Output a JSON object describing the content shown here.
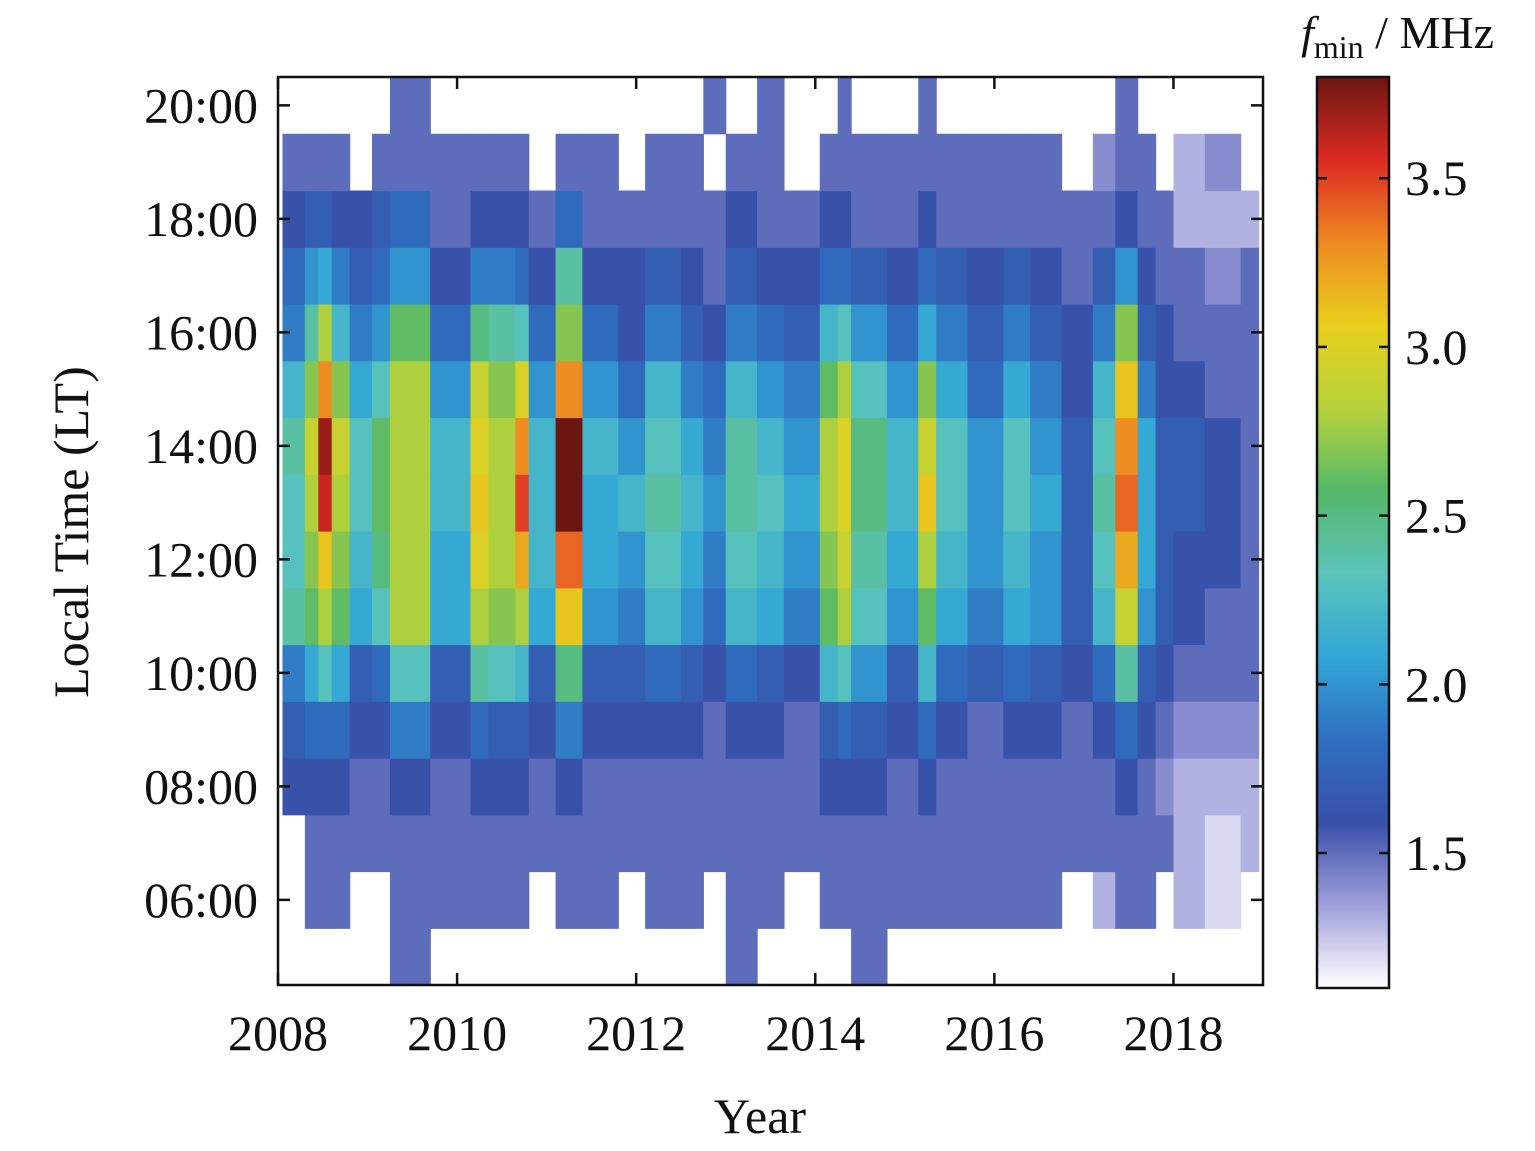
{
  "chart_data": {
    "type": "heatmap",
    "xlabel": "Year",
    "ylabel": "Local Time (LT)",
    "colorbar": {
      "label_main": "f",
      "label_sub": "min",
      "label_unit": " / MHz",
      "range": [
        1.1,
        3.8
      ],
      "ticks": [
        1.5,
        2.0,
        2.5,
        3.0,
        3.5
      ],
      "tick_labels": [
        "1.5",
        "2.0",
        "2.5",
        "3.0",
        "3.5"
      ],
      "colors": [
        "#ffffff",
        "#9f9fdb",
        "#3850a8",
        "#2f6fbf",
        "#32a6d6",
        "#5cc4bb",
        "#55b86a",
        "#b6d23a",
        "#e8cf1e",
        "#ee8a22",
        "#dc2a24",
        "#6b1612"
      ]
    },
    "xlim": [
      2008,
      2019
    ],
    "xticks": [
      2008,
      2010,
      2012,
      2014,
      2016,
      2018
    ],
    "xtick_labels": [
      "2008",
      "2010",
      "2012",
      "2014",
      "2016",
      "2018"
    ],
    "ylim": [
      4.5,
      20.5
    ],
    "yticks": [
      6,
      8,
      10,
      12,
      14,
      16,
      18,
      20
    ],
    "ytick_labels": [
      "06:00",
      "08:00",
      "10:00",
      "12:00",
      "14:00",
      "16:00",
      "18:00",
      "20:00"
    ],
    "hours": [
      5,
      6,
      7,
      8,
      9,
      10,
      11,
      12,
      13,
      14,
      15,
      16,
      17,
      18,
      19,
      20
    ],
    "columns": [
      {
        "x0": 2008.05,
        "x1": 2008.3,
        "v": [
          null,
          null,
          null,
          1.6,
          1.7,
          1.9,
          2.4,
          2.3,
          2.3,
          2.4,
          2.2,
          1.9,
          1.8,
          1.6,
          1.5,
          null
        ]
      },
      {
        "x0": 2008.3,
        "x1": 2008.45,
        "v": [
          null,
          1.5,
          1.5,
          1.6,
          1.8,
          2.1,
          2.6,
          2.7,
          2.8,
          2.9,
          2.7,
          2.4,
          2.0,
          1.7,
          1.5,
          null
        ]
      },
      {
        "x0": 2008.45,
        "x1": 2008.6,
        "v": [
          null,
          1.5,
          1.5,
          1.6,
          1.8,
          2.3,
          2.8,
          3.1,
          3.6,
          3.7,
          3.3,
          2.8,
          2.1,
          1.7,
          1.5,
          null
        ]
      },
      {
        "x0": 2008.6,
        "x1": 2008.8,
        "v": [
          null,
          1.5,
          1.5,
          1.6,
          1.8,
          2.1,
          2.6,
          2.7,
          2.8,
          2.9,
          2.7,
          2.2,
          1.9,
          1.6,
          1.5,
          null
        ]
      },
      {
        "x0": 2008.8,
        "x1": 2009.05,
        "v": [
          null,
          null,
          1.5,
          1.5,
          1.6,
          1.7,
          2.1,
          2.2,
          2.3,
          2.3,
          2.1,
          1.9,
          1.7,
          1.6,
          null,
          null
        ]
      },
      {
        "x0": 2009.05,
        "x1": 2009.25,
        "v": [
          null,
          null,
          1.5,
          1.5,
          1.6,
          1.8,
          2.3,
          2.5,
          2.6,
          2.6,
          2.3,
          2.0,
          1.8,
          1.7,
          1.5,
          null
        ]
      },
      {
        "x0": 2009.25,
        "x1": 2009.7,
        "v": [
          1.5,
          1.5,
          1.5,
          1.6,
          1.9,
          2.3,
          2.8,
          2.8,
          2.8,
          2.8,
          2.8,
          2.6,
          2.0,
          1.8,
          1.5,
          1.5
        ]
      },
      {
        "x0": 2009.7,
        "x1": 2010.15,
        "v": [
          null,
          1.5,
          1.5,
          1.5,
          1.6,
          1.7,
          2.1,
          2.1,
          2.2,
          2.2,
          2.0,
          1.8,
          1.6,
          1.5,
          1.5,
          null
        ]
      },
      {
        "x0": 2010.15,
        "x1": 2010.35,
        "v": [
          null,
          1.5,
          1.5,
          1.6,
          1.8,
          2.4,
          2.8,
          3.0,
          3.1,
          3.0,
          2.9,
          2.5,
          1.9,
          1.6,
          1.5,
          null
        ]
      },
      {
        "x0": 2010.35,
        "x1": 2010.65,
        "v": [
          null,
          1.5,
          1.5,
          1.6,
          1.7,
          2.3,
          2.7,
          2.8,
          2.8,
          2.8,
          2.7,
          2.4,
          1.9,
          1.6,
          1.5,
          null
        ]
      },
      {
        "x0": 2010.65,
        "x1": 2010.8,
        "v": [
          null,
          1.5,
          1.5,
          1.6,
          1.7,
          2.2,
          2.8,
          3.2,
          3.5,
          3.3,
          3.0,
          2.3,
          1.8,
          1.6,
          1.5,
          null
        ]
      },
      {
        "x0": 2010.8,
        "x1": 2011.1,
        "v": [
          null,
          null,
          1.5,
          1.5,
          1.6,
          1.7,
          2.1,
          2.2,
          2.2,
          2.2,
          2.0,
          1.8,
          1.6,
          1.5,
          null,
          null
        ]
      },
      {
        "x0": 2011.1,
        "x1": 2011.4,
        "v": [
          null,
          1.5,
          1.5,
          1.6,
          1.9,
          2.5,
          3.1,
          3.4,
          3.8,
          3.8,
          3.3,
          2.7,
          2.4,
          1.8,
          1.5,
          null
        ]
      },
      {
        "x0": 2011.4,
        "x1": 2011.8,
        "v": [
          null,
          1.5,
          1.5,
          1.5,
          1.6,
          1.7,
          2.0,
          2.1,
          2.1,
          2.2,
          2.0,
          1.8,
          1.6,
          1.5,
          1.5,
          null
        ]
      },
      {
        "x0": 2011.8,
        "x1": 2012.1,
        "v": [
          null,
          null,
          1.5,
          1.5,
          1.6,
          1.7,
          1.9,
          2.0,
          2.2,
          2.0,
          1.8,
          1.6,
          1.6,
          1.5,
          null,
          null
        ]
      },
      {
        "x0": 2012.1,
        "x1": 2012.5,
        "v": [
          null,
          1.5,
          1.5,
          1.5,
          1.6,
          1.8,
          2.2,
          2.3,
          2.4,
          2.3,
          2.2,
          1.9,
          1.7,
          1.5,
          1.5,
          null
        ]
      },
      {
        "x0": 2012.5,
        "x1": 2012.75,
        "v": [
          null,
          1.5,
          1.5,
          1.5,
          1.6,
          1.7,
          2.0,
          2.1,
          2.2,
          2.1,
          1.9,
          1.7,
          1.6,
          1.5,
          1.5,
          null
        ]
      },
      {
        "x0": 2012.75,
        "x1": 2013.0,
        "v": [
          null,
          null,
          1.5,
          1.5,
          1.5,
          1.6,
          1.8,
          1.9,
          2.0,
          1.9,
          1.8,
          1.6,
          1.5,
          1.5,
          null,
          1.5
        ]
      },
      {
        "x0": 2013.0,
        "x1": 2013.35,
        "v": [
          1.5,
          1.5,
          1.5,
          1.5,
          1.6,
          1.8,
          2.2,
          2.3,
          2.4,
          2.4,
          2.2,
          1.9,
          1.7,
          1.6,
          1.5,
          null
        ]
      },
      {
        "x0": 2013.35,
        "x1": 2013.65,
        "v": [
          null,
          1.5,
          1.5,
          1.5,
          1.6,
          1.7,
          2.1,
          2.2,
          2.3,
          2.2,
          2.0,
          1.8,
          1.6,
          1.5,
          1.5,
          1.5
        ]
      },
      {
        "x0": 2013.65,
        "x1": 2014.05,
        "v": [
          null,
          null,
          1.5,
          1.5,
          1.5,
          1.6,
          1.9,
          2.0,
          2.1,
          2.0,
          1.9,
          1.7,
          1.6,
          1.5,
          null,
          null
        ]
      },
      {
        "x0": 2014.05,
        "x1": 2014.25,
        "v": [
          null,
          1.5,
          1.5,
          1.6,
          1.7,
          2.2,
          2.6,
          2.7,
          2.8,
          2.8,
          2.6,
          2.2,
          1.8,
          1.6,
          1.5,
          null
        ]
      },
      {
        "x0": 2014.25,
        "x1": 2014.4,
        "v": [
          null,
          1.5,
          1.5,
          1.6,
          1.8,
          2.3,
          2.8,
          2.9,
          3.0,
          3.0,
          2.8,
          2.3,
          1.8,
          1.6,
          1.5,
          1.5
        ]
      },
      {
        "x0": 2014.4,
        "x1": 2014.8,
        "v": [
          1.5,
          1.5,
          1.5,
          1.6,
          1.7,
          2.0,
          2.3,
          2.4,
          2.5,
          2.5,
          2.3,
          2.0,
          1.7,
          1.5,
          1.5,
          null
        ]
      },
      {
        "x0": 2014.8,
        "x1": 2015.15,
        "v": [
          null,
          1.5,
          1.5,
          1.5,
          1.6,
          1.7,
          2.0,
          2.1,
          2.2,
          2.2,
          2.0,
          1.8,
          1.6,
          1.5,
          1.5,
          null
        ]
      },
      {
        "x0": 2015.15,
        "x1": 2015.35,
        "v": [
          null,
          1.5,
          1.5,
          1.6,
          1.8,
          2.2,
          2.6,
          2.8,
          3.1,
          2.9,
          2.7,
          2.1,
          1.8,
          1.6,
          1.5,
          1.5
        ]
      },
      {
        "x0": 2015.35,
        "x1": 2015.7,
        "v": [
          null,
          1.5,
          1.5,
          1.5,
          1.6,
          1.8,
          2.1,
          2.2,
          2.3,
          2.3,
          2.1,
          1.9,
          1.7,
          1.5,
          1.5,
          null
        ]
      },
      {
        "x0": 2015.7,
        "x1": 2016.1,
        "v": [
          null,
          1.5,
          1.5,
          1.5,
          1.5,
          1.7,
          1.9,
          2.0,
          2.0,
          2.0,
          1.8,
          1.7,
          1.6,
          1.5,
          1.5,
          null
        ]
      },
      {
        "x0": 2016.1,
        "x1": 2016.4,
        "v": [
          null,
          1.5,
          1.5,
          1.5,
          1.6,
          1.8,
          2.1,
          2.2,
          2.3,
          2.3,
          2.1,
          1.9,
          1.7,
          1.5,
          1.5,
          null
        ]
      },
      {
        "x0": 2016.4,
        "x1": 2016.75,
        "v": [
          null,
          1.5,
          1.5,
          1.5,
          1.6,
          1.7,
          2.0,
          2.0,
          2.1,
          2.0,
          1.9,
          1.7,
          1.6,
          1.5,
          1.5,
          null
        ]
      },
      {
        "x0": 2016.75,
        "x1": 2017.1,
        "v": [
          null,
          null,
          1.5,
          1.5,
          1.5,
          1.6,
          1.7,
          1.7,
          1.7,
          1.7,
          1.6,
          1.6,
          1.5,
          1.5,
          null,
          null
        ]
      },
      {
        "x0": 2017.1,
        "x1": 2017.35,
        "v": [
          null,
          1.3,
          1.5,
          1.5,
          1.6,
          1.8,
          2.2,
          2.3,
          2.4,
          2.3,
          2.2,
          1.9,
          1.7,
          1.5,
          1.4,
          null
        ]
      },
      {
        "x0": 2017.35,
        "x1": 2017.6,
        "v": [
          null,
          1.5,
          1.5,
          1.6,
          1.8,
          2.4,
          2.9,
          3.2,
          3.4,
          3.3,
          3.1,
          2.7,
          2.0,
          1.6,
          1.5,
          1.5
        ]
      },
      {
        "x0": 2017.6,
        "x1": 2017.8,
        "v": [
          null,
          1.5,
          1.5,
          1.5,
          1.6,
          1.7,
          2.0,
          2.1,
          2.1,
          2.1,
          1.9,
          1.7,
          1.6,
          1.5,
          1.5,
          null
        ]
      },
      {
        "x0": 2017.8,
        "x1": 2018.0,
        "v": [
          null,
          null,
          1.5,
          1.4,
          1.5,
          1.6,
          1.7,
          1.7,
          1.7,
          1.7,
          1.6,
          1.6,
          1.5,
          1.5,
          null,
          null
        ]
      },
      {
        "x0": 2018.0,
        "x1": 2018.35,
        "v": [
          null,
          1.3,
          1.3,
          1.3,
          1.4,
          1.5,
          1.6,
          1.6,
          1.7,
          1.7,
          1.6,
          1.5,
          1.5,
          1.3,
          1.3,
          null
        ]
      },
      {
        "x0": 2018.35,
        "x1": 2018.75,
        "v": [
          null,
          1.2,
          1.2,
          1.3,
          1.4,
          1.5,
          1.5,
          1.6,
          1.6,
          1.6,
          1.5,
          1.5,
          1.4,
          1.3,
          1.4,
          null
        ]
      },
      {
        "x0": 2018.75,
        "x1": 2018.95,
        "v": [
          null,
          null,
          1.3,
          1.3,
          1.4,
          1.5,
          1.5,
          1.5,
          1.5,
          1.5,
          1.5,
          1.5,
          1.5,
          1.3,
          null,
          null
        ]
      }
    ]
  }
}
